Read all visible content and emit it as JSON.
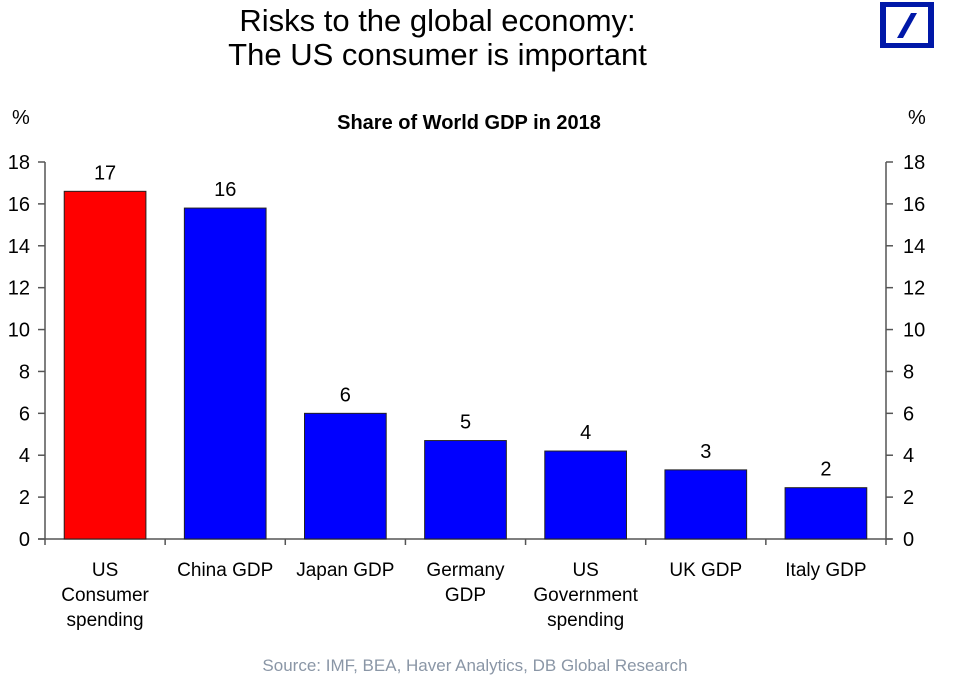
{
  "header": {
    "title_line1": "Risks to the global economy:",
    "title_line2": "The US consumer is important",
    "logo": "deutsche-bank-logo"
  },
  "colors": {
    "highlight": "#ff0000",
    "bar": "#0000ff",
    "logo": "#0018a8",
    "source_text": "#8a96a6"
  },
  "chart_data": {
    "type": "bar",
    "title": "Share of  World GDP in 2018",
    "xlabel": "",
    "ylabel": "%",
    "ylabel_right": "%",
    "ylim": [
      0,
      18
    ],
    "yticks": [
      0,
      2,
      4,
      6,
      8,
      10,
      12,
      14,
      16,
      18
    ],
    "grid": false,
    "legend": "none",
    "categories": [
      [
        "US",
        "Consumer",
        "spending"
      ],
      [
        "China GDP"
      ],
      [
        "Japan GDP"
      ],
      [
        "Germany",
        "GDP"
      ],
      [
        "US",
        "Government",
        "spending"
      ],
      [
        "UK GDP"
      ],
      [
        "Italy GDP"
      ]
    ],
    "values": [
      16.6,
      15.8,
      6.0,
      4.7,
      4.2,
      3.3,
      2.45
    ],
    "data_labels": [
      "17",
      "16",
      "6",
      "5",
      "4",
      "3",
      "2"
    ],
    "highlight_index": 0
  },
  "footer": {
    "source": "Source: IMF, BEA, Haver Analytics, DB Global Research"
  }
}
